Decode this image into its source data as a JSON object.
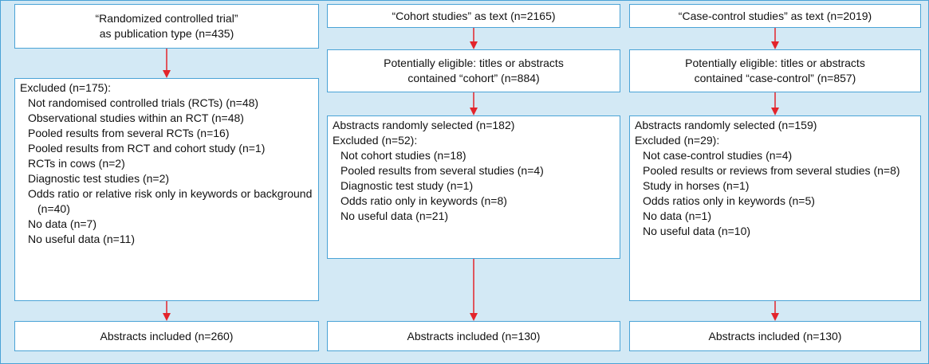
{
  "columns": [
    {
      "boxes": [
        {
          "lines": [
            "“Randomized controlled trial”",
            "as publication type (n=435)"
          ]
        },
        {
          "lines": [
            "Excluded (n=175):"
          ],
          "items": [
            "Not randomised controlled trials (RCTs) (n=48)",
            "Observational studies within an RCT (n=48)",
            "Pooled results from several RCTs (n=16)",
            "Pooled results from RCT and cohort study (n=1)",
            "RCTs in cows (n=2)",
            "Diagnostic test studies (n=2)",
            "Odds ratio or relative risk only in keywords or background (n=40)",
            "No data (n=7)",
            "No useful data (n=11)"
          ]
        },
        {
          "lines": [
            "Abstracts included  (n=260)"
          ]
        }
      ]
    },
    {
      "boxes": [
        {
          "lines": [
            "“Cohort studies” as text  (n=2165)"
          ]
        },
        {
          "lines": [
            "Potentially eligible: titles or abstracts",
            "contained “cohort” (n=884)"
          ]
        },
        {
          "lines": [
            "Abstracts randomly selected (n=182)",
            "Excluded (n=52):"
          ],
          "items": [
            "Not cohort studies (n=18)",
            "Pooled results from several studies (n=4)",
            "Diagnostic test study (n=1)",
            "Odds ratio only in keywords (n=8)",
            "No useful data (n=21)"
          ]
        },
        {
          "lines": [
            "Abstracts included  (n=130)"
          ]
        }
      ]
    },
    {
      "boxes": [
        {
          "lines": [
            "“Case-control studies” as text  (n=2019)"
          ]
        },
        {
          "lines": [
            "Potentially eligible: titles or abstracts",
            "contained “case-control” (n=857)"
          ]
        },
        {
          "lines": [
            "Abstracts randomly selected (n=159)",
            "Excluded (n=29):"
          ],
          "items": [
            "Not case-control studies (n=4)",
            "Pooled results or reviews from several studies (n=8)",
            "Study in horses (n=1)",
            "Odds ratios only in keywords (n=5)",
            "No data (n=1)",
            "No useful data (n=10)"
          ]
        },
        {
          "lines": [
            "Abstracts included  (n=130)"
          ]
        }
      ]
    }
  ]
}
